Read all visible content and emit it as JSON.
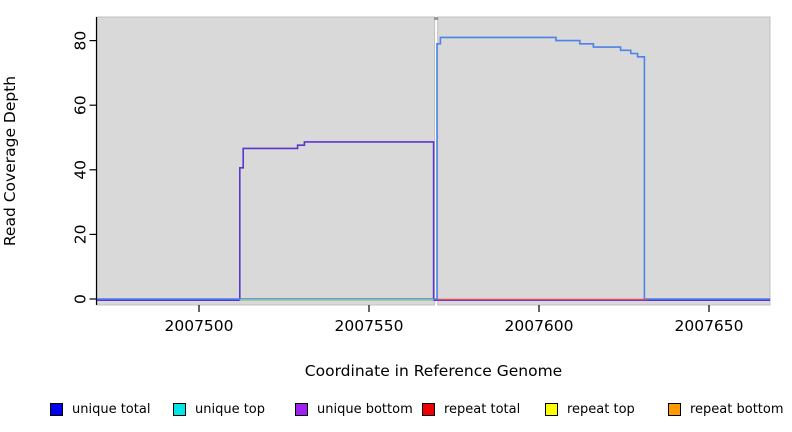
{
  "chart_data": {
    "type": "line",
    "title": "",
    "xlabel": "Coordinate in Reference Genome",
    "ylabel": "Read Coverage Depth",
    "x_ticks": [
      2007500,
      2007550,
      2007600,
      2007650
    ],
    "y_ticks": [
      0,
      20,
      40,
      60,
      80
    ],
    "xlim": [
      2007470,
      2007668
    ],
    "ylim": [
      0,
      87
    ],
    "grid": false,
    "panel_background": "#d9d9d9",
    "panel_border": "#c0c0c0",
    "panel_gap_x": [
      2007569.3,
      2007570.2
    ],
    "gap_notch_color": "#999999",
    "series": [
      {
        "name": "unique bottom",
        "color": "#5c35cf",
        "points": [
          [
            2007470,
            0
          ],
          [
            2007512,
            0
          ],
          [
            2007512,
            41
          ],
          [
            2007513,
            41
          ],
          [
            2007513,
            47
          ],
          [
            2007529,
            47
          ],
          [
            2007529,
            48
          ],
          [
            2007531,
            48
          ],
          [
            2007531,
            49
          ],
          [
            2007569,
            49
          ],
          [
            2007569,
            0
          ],
          [
            2007668,
            0
          ]
        ]
      },
      {
        "name": "unique total",
        "color": "#4c82ea",
        "points": [
          [
            2007470,
            0
          ],
          [
            2007570,
            0
          ],
          [
            2007570,
            79
          ],
          [
            2007571,
            79
          ],
          [
            2007571,
            81
          ],
          [
            2007605,
            81
          ],
          [
            2007605,
            80
          ],
          [
            2007612,
            80
          ],
          [
            2007612,
            79
          ],
          [
            2007616,
            79
          ],
          [
            2007616,
            78
          ],
          [
            2007624,
            78
          ],
          [
            2007624,
            77
          ],
          [
            2007627,
            77
          ],
          [
            2007627,
            76
          ],
          [
            2007629,
            76
          ],
          [
            2007629,
            75
          ],
          [
            2007631,
            75
          ],
          [
            2007631,
            0
          ],
          [
            2007668,
            0
          ]
        ]
      },
      {
        "name": "unlabeled green zero line",
        "color": "#8fc98f",
        "points": [
          [
            2007512,
            0
          ],
          [
            2007569,
            0
          ]
        ]
      },
      {
        "name": "repeat total",
        "color": "#d94f63",
        "points": [
          [
            2007570,
            0
          ],
          [
            2007632,
            0
          ]
        ]
      }
    ]
  },
  "legend": {
    "items": [
      {
        "label": "unique total",
        "color": "#0000ee"
      },
      {
        "label": "unique top",
        "color": "#00e5e5"
      },
      {
        "label": "unique bottom",
        "color": "#a020f0"
      },
      {
        "label": "repeat total",
        "color": "#ee0000"
      },
      {
        "label": "repeat top",
        "color": "#ffff00"
      },
      {
        "label": "repeat bottom",
        "color": "#ff9900"
      }
    ]
  }
}
